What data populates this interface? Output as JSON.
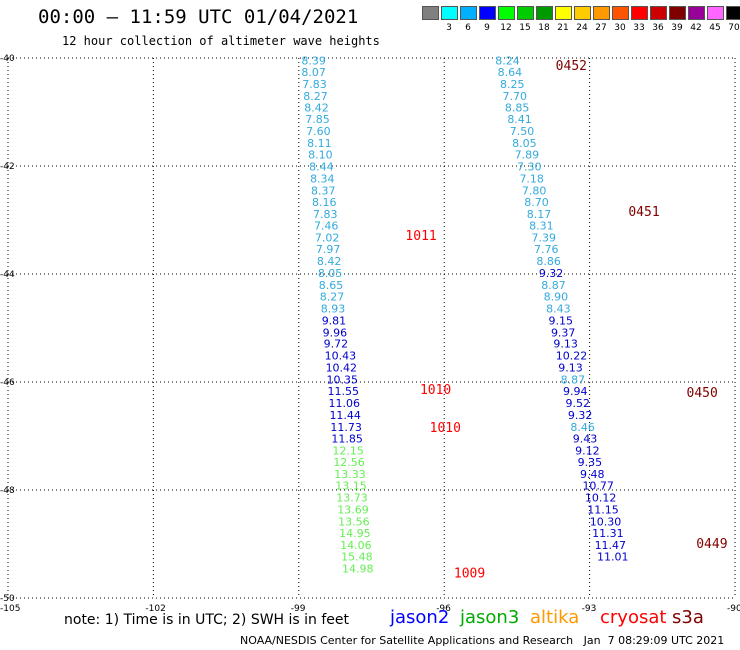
{
  "header": {
    "title": "00:00 – 11:59 UTC 01/04/2021",
    "subtitle": "12 hour collection of altimeter wave heights"
  },
  "legend": {
    "unit_label": "(ft)",
    "bins": [
      {
        "label": "",
        "color": "#808080"
      },
      {
        "label": "3",
        "color": "#00ffff"
      },
      {
        "label": "6",
        "color": "#00b0ff"
      },
      {
        "label": "9",
        "color": "#0000ff"
      },
      {
        "label": "12",
        "color": "#00ff00"
      },
      {
        "label": "15",
        "color": "#00cc00"
      },
      {
        "label": "18",
        "color": "#009900"
      },
      {
        "label": "21",
        "color": "#ffff00"
      },
      {
        "label": "24",
        "color": "#ffcc00"
      },
      {
        "label": "27",
        "color": "#ff9900"
      },
      {
        "label": "30",
        "color": "#ff5500"
      },
      {
        "label": "33",
        "color": "#ff0000"
      },
      {
        "label": "36",
        "color": "#cc0000"
      },
      {
        "label": "39",
        "color": "#800000"
      },
      {
        "label": "42",
        "color": "#990099"
      },
      {
        "label": "45",
        "color": "#ff66ff"
      },
      {
        "label": "70",
        "color": "#000000"
      }
    ]
  },
  "map": {
    "lon_range": [
      -105,
      -90
    ],
    "lat_range": [
      -50,
      -40
    ],
    "lon_ticks": [
      "-105",
      "-102",
      "-99",
      "-96",
      "-93",
      "-90"
    ],
    "lat_ticks": [
      "-40",
      "-42",
      "-44",
      "-46",
      "-48",
      "-50"
    ],
    "colors": {
      "cyan": "#33aadd",
      "blue": "#0000cc",
      "green": "#66ee55",
      "label_red": "#ff0000",
      "label_dark": "#800000"
    }
  },
  "tracks": [
    {
      "name_hidden": "west",
      "points": [
        {
          "lat": -40.05,
          "lon": -98.7,
          "v": "8.39",
          "c": "cyan"
        },
        {
          "lat": -40.26,
          "lon": -98.7,
          "v": "8.07",
          "c": "cyan"
        },
        {
          "lat": -40.48,
          "lon": -98.68,
          "v": "7.83",
          "c": "cyan"
        },
        {
          "lat": -40.7,
          "lon": -98.66,
          "v": "8.27",
          "c": "cyan"
        },
        {
          "lat": -40.92,
          "lon": -98.64,
          "v": "8.42",
          "c": "cyan"
        },
        {
          "lat": -41.13,
          "lon": -98.62,
          "v": "7.85",
          "c": "cyan"
        },
        {
          "lat": -41.35,
          "lon": -98.6,
          "v": "7.60",
          "c": "cyan"
        },
        {
          "lat": -41.57,
          "lon": -98.58,
          "v": "8.11",
          "c": "cyan"
        },
        {
          "lat": -41.79,
          "lon": -98.56,
          "v": "8.10",
          "c": "cyan"
        },
        {
          "lat": -42.01,
          "lon": -98.54,
          "v": "8.44",
          "c": "cyan"
        },
        {
          "lat": -42.23,
          "lon": -98.52,
          "v": "8.34",
          "c": "cyan"
        },
        {
          "lat": -42.45,
          "lon": -98.5,
          "v": "8.37",
          "c": "cyan"
        },
        {
          "lat": -42.67,
          "lon": -98.48,
          "v": "8.16",
          "c": "cyan"
        },
        {
          "lat": -42.89,
          "lon": -98.46,
          "v": "7.83",
          "c": "cyan"
        },
        {
          "lat": -43.1,
          "lon": -98.44,
          "v": "7.46",
          "c": "cyan"
        },
        {
          "lat": -43.32,
          "lon": -98.42,
          "v": "7.02",
          "c": "cyan"
        },
        {
          "lat": -43.54,
          "lon": -98.4,
          "v": "7.97",
          "c": "cyan"
        },
        {
          "lat": -43.76,
          "lon": -98.38,
          "v": "8.42",
          "c": "cyan"
        },
        {
          "lat": -43.98,
          "lon": -98.36,
          "v": "8.05",
          "c": "cyan"
        },
        {
          "lat": -44.2,
          "lon": -98.34,
          "v": "8.65",
          "c": "cyan"
        },
        {
          "lat": -44.42,
          "lon": -98.32,
          "v": "8.27",
          "c": "cyan"
        },
        {
          "lat": -44.64,
          "lon": -98.3,
          "v": "8.93",
          "c": "cyan"
        },
        {
          "lat": -44.86,
          "lon": -98.28,
          "v": "9.81",
          "c": "blue"
        },
        {
          "lat": -45.08,
          "lon": -98.26,
          "v": "9.96",
          "c": "blue"
        },
        {
          "lat": -45.29,
          "lon": -98.24,
          "v": "9.72",
          "c": "blue"
        },
        {
          "lat": -45.51,
          "lon": -98.22,
          "v": "10.43",
          "c": "blue"
        },
        {
          "lat": -45.73,
          "lon": -98.2,
          "v": "10.42",
          "c": "blue"
        },
        {
          "lat": -45.95,
          "lon": -98.18,
          "v": "10.35",
          "c": "blue"
        },
        {
          "lat": -46.17,
          "lon": -98.16,
          "v": "11.55",
          "c": "blue"
        },
        {
          "lat": -46.39,
          "lon": -98.14,
          "v": "11.06",
          "c": "blue"
        },
        {
          "lat": -46.61,
          "lon": -98.12,
          "v": "11.44",
          "c": "blue"
        },
        {
          "lat": -46.83,
          "lon": -98.1,
          "v": "11.73",
          "c": "blue"
        },
        {
          "lat": -47.05,
          "lon": -98.08,
          "v": "11.85",
          "c": "blue"
        },
        {
          "lat": -47.27,
          "lon": -98.06,
          "v": "12.15",
          "c": "green"
        },
        {
          "lat": -47.48,
          "lon": -98.04,
          "v": "12.56",
          "c": "green"
        },
        {
          "lat": -47.7,
          "lon": -98.02,
          "v": "13.33",
          "c": "green"
        },
        {
          "lat": -47.92,
          "lon": -98.0,
          "v": "13.15",
          "c": "green"
        },
        {
          "lat": -48.14,
          "lon": -97.98,
          "v": "13.73",
          "c": "green"
        },
        {
          "lat": -48.36,
          "lon": -97.96,
          "v": "13.69",
          "c": "green"
        },
        {
          "lat": -48.58,
          "lon": -97.94,
          "v": "13.56",
          "c": "green"
        },
        {
          "lat": -48.8,
          "lon": -97.92,
          "v": "14.95",
          "c": "green"
        },
        {
          "lat": -49.02,
          "lon": -97.9,
          "v": "14.06",
          "c": "green"
        },
        {
          "lat": -49.23,
          "lon": -97.88,
          "v": "15.48",
          "c": "green"
        },
        {
          "lat": -49.45,
          "lon": -97.86,
          "v": "14.98",
          "c": "green"
        }
      ]
    },
    {
      "name_hidden": "east",
      "points": [
        {
          "lat": -40.05,
          "lon": -94.7,
          "v": "8.24",
          "c": "cyan"
        },
        {
          "lat": -40.26,
          "lon": -94.65,
          "v": "8.64",
          "c": "cyan"
        },
        {
          "lat": -40.48,
          "lon": -94.6,
          "v": "8.25",
          "c": "cyan"
        },
        {
          "lat": -40.7,
          "lon": -94.55,
          "v": "7.70",
          "c": "cyan"
        },
        {
          "lat": -40.92,
          "lon": -94.5,
          "v": "8.85",
          "c": "cyan"
        },
        {
          "lat": -41.13,
          "lon": -94.45,
          "v": "8.41",
          "c": "cyan"
        },
        {
          "lat": -41.35,
          "lon": -94.4,
          "v": "7.50",
          "c": "cyan"
        },
        {
          "lat": -41.57,
          "lon": -94.35,
          "v": "8.05",
          "c": "cyan"
        },
        {
          "lat": -41.79,
          "lon": -94.3,
          "v": "7.89",
          "c": "cyan"
        },
        {
          "lat": -42.01,
          "lon": -94.25,
          "v": "7.30",
          "c": "cyan"
        },
        {
          "lat": -42.23,
          "lon": -94.2,
          "v": "7.18",
          "c": "cyan"
        },
        {
          "lat": -42.45,
          "lon": -94.15,
          "v": "7.80",
          "c": "cyan"
        },
        {
          "lat": -42.67,
          "lon": -94.1,
          "v": "8.70",
          "c": "cyan"
        },
        {
          "lat": -42.89,
          "lon": -94.05,
          "v": "8.17",
          "c": "cyan"
        },
        {
          "lat": -43.1,
          "lon": -94.0,
          "v": "8.31",
          "c": "cyan"
        },
        {
          "lat": -43.32,
          "lon": -93.95,
          "v": "7.39",
          "c": "cyan"
        },
        {
          "lat": -43.54,
          "lon": -93.9,
          "v": "7.76",
          "c": "cyan"
        },
        {
          "lat": -43.76,
          "lon": -93.85,
          "v": "8.86",
          "c": "cyan"
        },
        {
          "lat": -43.98,
          "lon": -93.8,
          "v": "9.32",
          "c": "blue"
        },
        {
          "lat": -44.2,
          "lon": -93.75,
          "v": "8.87",
          "c": "cyan"
        },
        {
          "lat": -44.42,
          "lon": -93.7,
          "v": "8.90",
          "c": "cyan"
        },
        {
          "lat": -44.64,
          "lon": -93.65,
          "v": "8.43",
          "c": "cyan"
        },
        {
          "lat": -44.86,
          "lon": -93.6,
          "v": "9.15",
          "c": "blue"
        },
        {
          "lat": -45.08,
          "lon": -93.55,
          "v": "9.37",
          "c": "blue"
        },
        {
          "lat": -45.29,
          "lon": -93.5,
          "v": "9.13",
          "c": "blue"
        },
        {
          "lat": -45.51,
          "lon": -93.45,
          "v": "10.22",
          "c": "blue"
        },
        {
          "lat": -45.73,
          "lon": -93.4,
          "v": "9.13",
          "c": "blue"
        },
        {
          "lat": -45.95,
          "lon": -93.35,
          "v": "8.87",
          "c": "cyan"
        },
        {
          "lat": -46.17,
          "lon": -93.3,
          "v": "9.94",
          "c": "blue"
        },
        {
          "lat": -46.39,
          "lon": -93.25,
          "v": "9.52",
          "c": "blue"
        },
        {
          "lat": -46.61,
          "lon": -93.2,
          "v": "9.32",
          "c": "blue"
        },
        {
          "lat": -46.83,
          "lon": -93.15,
          "v": "8.46",
          "c": "cyan"
        },
        {
          "lat": -47.05,
          "lon": -93.1,
          "v": "9.43",
          "c": "blue"
        },
        {
          "lat": -47.27,
          "lon": -93.05,
          "v": "9.12",
          "c": "blue"
        },
        {
          "lat": -47.48,
          "lon": -93.0,
          "v": "9.35",
          "c": "blue"
        },
        {
          "lat": -47.7,
          "lon": -92.95,
          "v": "9.48",
          "c": "blue"
        },
        {
          "lat": -47.92,
          "lon": -92.9,
          "v": "10.77",
          "c": "blue"
        },
        {
          "lat": -48.14,
          "lon": -92.85,
          "v": "10.12",
          "c": "blue"
        },
        {
          "lat": -48.36,
          "lon": -92.8,
          "v": "11.15",
          "c": "blue"
        },
        {
          "lat": -48.58,
          "lon": -92.75,
          "v": "10.30",
          "c": "blue"
        },
        {
          "lat": -48.8,
          "lon": -92.7,
          "v": "11.31",
          "c": "blue"
        },
        {
          "lat": -49.02,
          "lon": -92.65,
          "v": "11.47",
          "c": "blue"
        },
        {
          "lat": -49.23,
          "lon": -92.6,
          "v": "11.01",
          "c": "blue"
        }
      ]
    }
  ],
  "pass_labels": [
    {
      "lat": -40.15,
      "lon": -93.7,
      "text": "0452",
      "c": "label_dark"
    },
    {
      "lat": -42.85,
      "lon": -92.2,
      "text": "0451",
      "c": "label_dark"
    },
    {
      "lat": -43.3,
      "lon": -96.8,
      "text": "1011",
      "c": "label_red"
    },
    {
      "lat": -46.15,
      "lon": -96.5,
      "text": "1010",
      "c": "label_red"
    },
    {
      "lat": -46.85,
      "lon": -96.3,
      "text": "1010",
      "c": "label_red"
    },
    {
      "lat": -46.2,
      "lon": -91.0,
      "text": "0450",
      "c": "label_dark"
    },
    {
      "lat": -49.0,
      "lon": -90.8,
      "text": "0449",
      "c": "label_dark"
    },
    {
      "lat": -49.55,
      "lon": -95.8,
      "text": "1009",
      "c": "label_red"
    }
  ],
  "footer": {
    "note": "note: 1) Time is in UTC; 2) SWH is in feet",
    "satellites": [
      {
        "name": "jason2",
        "color": "#0000ff"
      },
      {
        "name": "jason3",
        "color": "#00aa00"
      },
      {
        "name": "altika",
        "color": "#ff9900"
      },
      {
        "name": "cryosat",
        "color": "#ff0000"
      },
      {
        "name": "s3a",
        "color": "#800000"
      }
    ],
    "credit": "NOAA/NESDIS Center for Satellite Applications and Research   Jan  7 08:29:09 UTC 2021"
  }
}
